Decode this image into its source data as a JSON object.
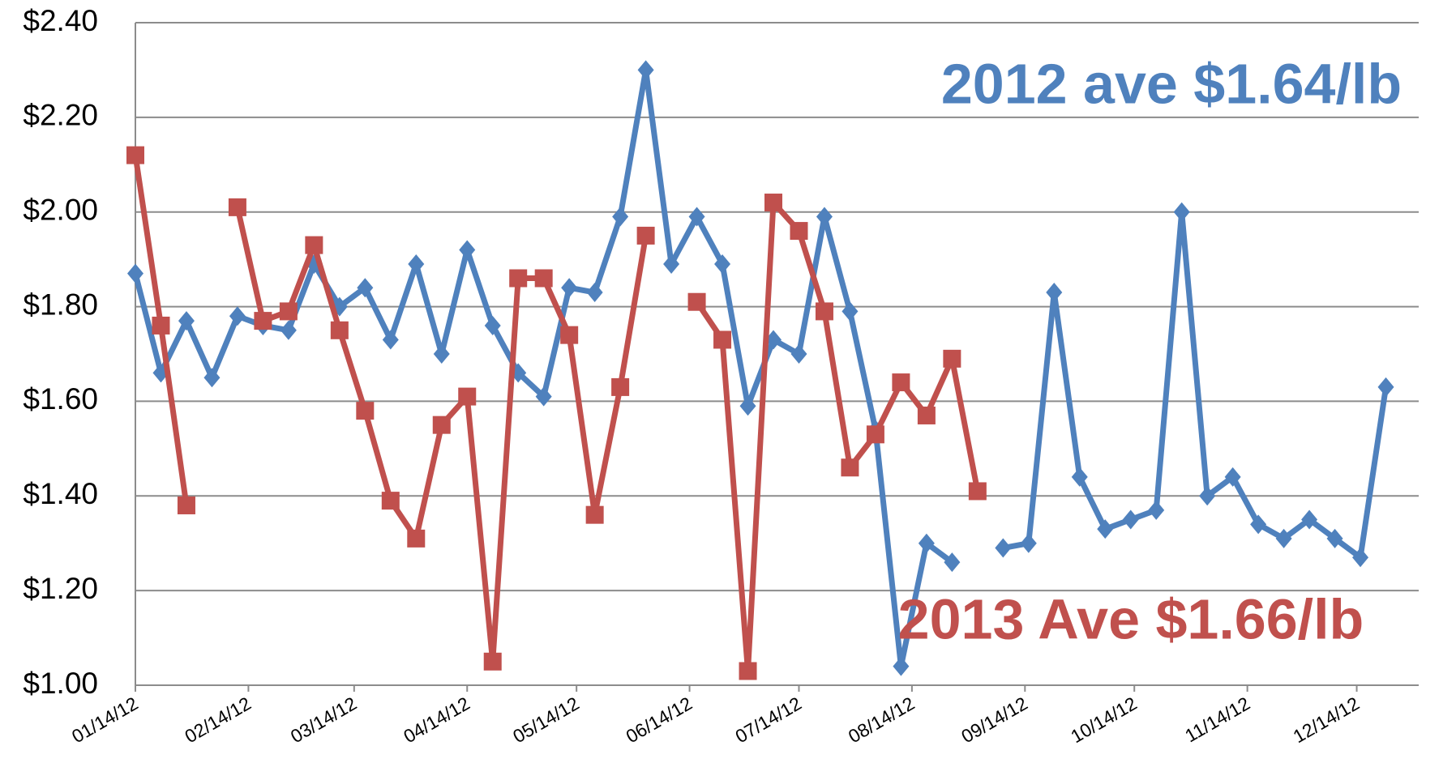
{
  "chart_data": {
    "type": "line",
    "x": [
      "2012-01-14",
      "2012-01-21",
      "2012-01-28",
      "2012-02-04",
      "2012-02-11",
      "2012-02-18",
      "2012-02-25",
      "2012-03-03",
      "2012-03-10",
      "2012-03-17",
      "2012-03-24",
      "2012-03-31",
      "2012-04-07",
      "2012-04-14",
      "2012-04-21",
      "2012-04-28",
      "2012-05-05",
      "2012-05-12",
      "2012-05-19",
      "2012-05-26",
      "2012-06-02",
      "2012-06-09",
      "2012-06-16",
      "2012-06-23",
      "2012-06-30",
      "2012-07-07",
      "2012-07-14",
      "2012-07-21",
      "2012-07-28",
      "2012-08-04",
      "2012-08-11",
      "2012-08-18",
      "2012-08-25",
      "2012-09-01",
      "2012-09-08",
      "2012-09-15",
      "2012-09-22",
      "2012-09-29",
      "2012-10-06",
      "2012-10-13",
      "2012-10-20",
      "2012-10-27",
      "2012-11-03",
      "2012-11-10",
      "2012-11-17",
      "2012-11-24",
      "2012-12-01",
      "2012-12-08",
      "2012-12-15",
      "2012-12-22"
    ],
    "series": [
      {
        "color": "#4f81bd",
        "marker": "diamond",
        "values": [
          1.87,
          1.66,
          1.77,
          1.65,
          1.78,
          1.76,
          1.75,
          1.89,
          1.8,
          1.84,
          1.73,
          1.89,
          1.7,
          1.92,
          1.76,
          1.66,
          1.61,
          1.84,
          1.83,
          1.99,
          2.3,
          1.89,
          1.99,
          1.89,
          1.59,
          1.73,
          1.7,
          1.99,
          1.79,
          1.54,
          1.04,
          1.3,
          1.26,
          null,
          1.29,
          1.3,
          1.83,
          1.44,
          1.33,
          1.35,
          1.37,
          2.0,
          1.4,
          1.44,
          1.34,
          1.31,
          1.35,
          1.31,
          1.27,
          1.63
        ]
      },
      {
        "color": "#c0504d",
        "marker": "square",
        "values": [
          2.12,
          1.76,
          1.38,
          null,
          2.01,
          1.77,
          1.79,
          1.93,
          1.75,
          1.58,
          1.39,
          1.31,
          1.55,
          1.61,
          1.05,
          1.86,
          1.86,
          1.74,
          1.36,
          1.63,
          1.95,
          null,
          1.81,
          1.73,
          1.03,
          2.02,
          1.96,
          1.79,
          1.46,
          1.53,
          1.64,
          1.57,
          1.69,
          1.41,
          null,
          null,
          null,
          null,
          null,
          null,
          null,
          null,
          null,
          null,
          null,
          null,
          null,
          null,
          null,
          null
        ]
      }
    ],
    "xlim": [
      "2012-01-14",
      "2012-12-31"
    ],
    "xticks": [
      {
        "value": "2012-01-14",
        "label": "01/14/12"
      },
      {
        "value": "2012-02-14",
        "label": "02/14/12"
      },
      {
        "value": "2012-03-14",
        "label": "03/14/12"
      },
      {
        "value": "2012-04-14",
        "label": "04/14/12"
      },
      {
        "value": "2012-05-14",
        "label": "05/14/12"
      },
      {
        "value": "2012-06-14",
        "label": "06/14/12"
      },
      {
        "value": "2012-07-14",
        "label": "07/14/12"
      },
      {
        "value": "2012-08-14",
        "label": "08/14/12"
      },
      {
        "value": "2012-09-14",
        "label": "09/14/12"
      },
      {
        "value": "2012-10-14",
        "label": "10/14/12"
      },
      {
        "value": "2012-11-14",
        "label": "11/14/12"
      },
      {
        "value": "2012-12-14",
        "label": "12/14/12"
      }
    ],
    "ylim": [
      1.0,
      2.4
    ],
    "yticks": [
      {
        "value": 1.0,
        "label": "$1.00"
      },
      {
        "value": 1.2,
        "label": "$1.20"
      },
      {
        "value": 1.4,
        "label": "$1.40"
      },
      {
        "value": 1.6,
        "label": "$1.60"
      },
      {
        "value": 1.8,
        "label": "$1.80"
      },
      {
        "value": 2.0,
        "label": "$2.00"
      },
      {
        "value": 2.2,
        "label": "$2.20"
      },
      {
        "value": 2.4,
        "label": "$2.40"
      }
    ],
    "grid": true,
    "annotations": [
      {
        "text": "2012 ave $1.64/lb",
        "color": "#4f81bd"
      },
      {
        "text": "2013  Ave $1.66/lb",
        "color": "#c0504d"
      }
    ]
  }
}
